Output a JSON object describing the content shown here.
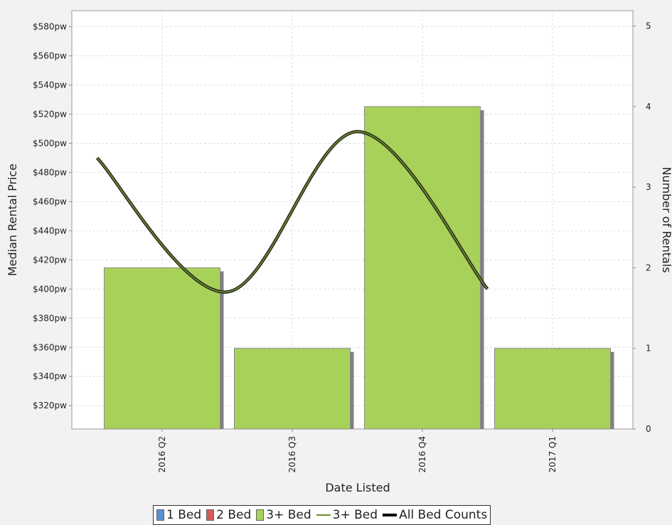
{
  "chart_data": {
    "type": "bar",
    "x_label": "Date Listed",
    "y_label": "Median Rental Price",
    "y2_label": "Number of Rentals",
    "categories": [
      "2016 Q2",
      "2016 Q3",
      "2016 Q4",
      "2017 Q1"
    ],
    "series": [
      {
        "name": "1 Bed",
        "type": "bar",
        "axis": "y2",
        "color": "#5b8fd6",
        "values": [
          null,
          null,
          null,
          null
        ]
      },
      {
        "name": "2 Bed",
        "type": "bar",
        "axis": "y2",
        "color": "#d65b5b",
        "values": [
          null,
          null,
          null,
          null
        ]
      },
      {
        "name": "3+ Bed",
        "type": "bar",
        "axis": "y2",
        "color": "#a8d15a",
        "values": [
          2,
          1,
          4,
          1
        ]
      },
      {
        "name": "3+ Bed",
        "type": "line",
        "color": "#6b8e23",
        "values": [
          490,
          398,
          508,
          400
        ]
      },
      {
        "name": "All Bed Counts",
        "type": "line",
        "axis": "y2",
        "color": "#000000",
        "values": [
          null,
          null,
          null,
          null
        ]
      }
    ],
    "ylim": [
      304,
      591
    ],
    "yticks": [
      {
        "value": 320,
        "label": "$320pw"
      },
      {
        "value": 340,
        "label": "$340pw"
      },
      {
        "value": 360,
        "label": "$360pw"
      },
      {
        "value": 380,
        "label": "$380pw"
      },
      {
        "value": 400,
        "label": "$400pw"
      },
      {
        "value": 420,
        "label": "$420pw"
      },
      {
        "value": 440,
        "label": "$440pw"
      },
      {
        "value": 460,
        "label": "$460pw"
      },
      {
        "value": 480,
        "label": "$480pw"
      },
      {
        "value": 500,
        "label": "$500pw"
      },
      {
        "value": 520,
        "label": "$520pw"
      },
      {
        "value": 540,
        "label": "$540pw"
      },
      {
        "value": 560,
        "label": "$560pw"
      },
      {
        "value": 580,
        "label": "$580pw"
      }
    ],
    "y2lim": [
      0,
      5.19
    ],
    "y2ticks": [
      0,
      1,
      2,
      3,
      4,
      5
    ],
    "grid": true,
    "legend": "bottom"
  }
}
